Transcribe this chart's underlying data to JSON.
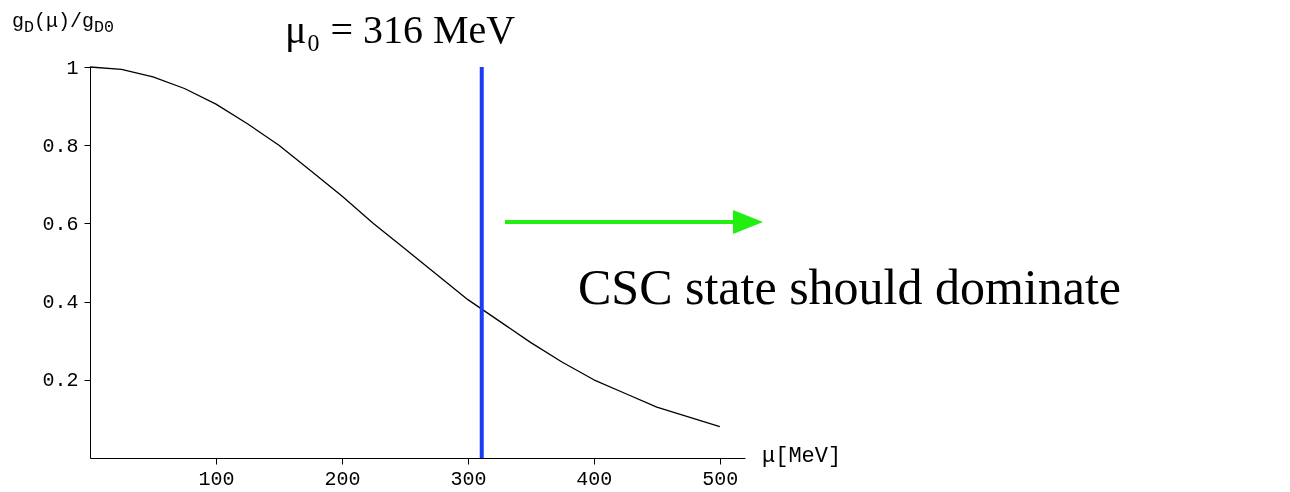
{
  "chart_data": {
    "type": "line",
    "title": "μ₀ = 316 MeV",
    "xlabel": "μ[MeV]",
    "ylabel": "g$_{D}$(μ)/g$_{D0}$",
    "annotations": [
      "CSC state should dominate"
    ],
    "x": [
      0,
      25,
      50,
      75,
      100,
      125,
      150,
      175,
      200,
      225,
      250,
      275,
      300,
      325,
      350,
      375,
      400,
      425,
      450,
      475,
      500
    ],
    "series": [
      {
        "color": "#000000",
        "values": [
          1.0,
          0.994,
          0.975,
          0.945,
          0.905,
          0.855,
          0.8,
          0.735,
          0.67,
          0.6,
          0.535,
          0.47,
          0.405,
          0.35,
          0.295,
          0.245,
          0.2,
          0.165,
          0.13,
          0.105,
          0.08
        ]
      }
    ],
    "xlim": [
      0,
      520
    ],
    "ylim": [
      0,
      1
    ],
    "xticks": [
      100,
      200,
      300,
      400,
      500
    ],
    "yticks": [
      0.2,
      0.4,
      0.6,
      0.8,
      1
    ],
    "ref_lines": [
      {
        "axis": "x",
        "value": 311,
        "color": "#1a3cf5"
      }
    ],
    "grid": false,
    "marker": "none",
    "line_style": "solid"
  }
}
